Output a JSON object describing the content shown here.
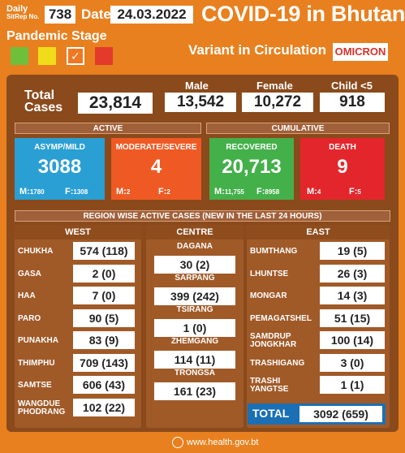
{
  "header": {
    "daily_l1": "Daily",
    "daily_l2": "SitRep No.",
    "sitrep_no": "738",
    "date_label": "Date",
    "date": "24.03.2022",
    "title": "COVID-19 in Bhutan",
    "pandemic_stage": "Pandemic Stage",
    "stage_check": "✓",
    "variant_label": "Variant in Circulation",
    "variant": "OMICRON",
    "colors": {
      "green": "#6fbf3b",
      "yellow": "#f0dc1a",
      "orange": "#f07822",
      "red": "#e23b2b"
    }
  },
  "totals": {
    "label_l1": "Total",
    "label_l2": "Cases",
    "total": "23,814",
    "male_label": "Male",
    "male": "13,542",
    "female_label": "Female",
    "female": "10,272",
    "child_label": "Child <5",
    "child": "918"
  },
  "active": {
    "header": "ACTIVE",
    "asymp": {
      "label": "ASYMP/MILD",
      "value": "3088",
      "m": "1780",
      "f": "1308"
    },
    "moderate": {
      "label": "MODERATE/SEVERE",
      "value": "4",
      "m": "2",
      "f": "2"
    }
  },
  "cumulative": {
    "header": "CUMULATIVE",
    "recovered": {
      "label": "RECOVERED",
      "value": "20,713",
      "m": "11,755",
      "f": "8958"
    },
    "death": {
      "label": "DEATH",
      "value": "9",
      "m": "4",
      "f": "5"
    }
  },
  "labels": {
    "m": "M:",
    "f": "F:"
  },
  "region": {
    "header": "REGION WISE ACTIVE CASES (NEW IN THE LAST 24 HOURS)",
    "west": {
      "name": "WEST",
      "items": [
        {
          "d1": "CHUKHA",
          "d2": "",
          "v": "574 (118)"
        },
        {
          "d1": "GASA",
          "d2": "",
          "v": "2 (0)"
        },
        {
          "d1": "HAA",
          "d2": "",
          "v": "7 (0)"
        },
        {
          "d1": "PARO",
          "d2": "",
          "v": "90 (5)"
        },
        {
          "d1": "PUNAKHA",
          "d2": "",
          "v": "83 (9)"
        },
        {
          "d1": "THIMPHU",
          "d2": "",
          "v": "709 (143)"
        },
        {
          "d1": "SAMTSE",
          "d2": "",
          "v": "606 (43)"
        },
        {
          "d1": "WANGDUE",
          "d2": "PHODRANG",
          "v": "102 (22)"
        }
      ]
    },
    "centre": {
      "name": "CENTRE",
      "items": [
        {
          "d": "DAGANA",
          "v": "30 (2)"
        },
        {
          "d": "SARPANG",
          "v": "399 (242)"
        },
        {
          "d": "TSIRANG",
          "v": "1 (0)"
        },
        {
          "d": "ZHEMGANG",
          "v": "114 (11)"
        },
        {
          "d": "TRONGSA",
          "v": "161 (23)"
        }
      ]
    },
    "east": {
      "name": "EAST",
      "items": [
        {
          "d1": "BUMTHANG",
          "d2": "",
          "v": "19 (5)"
        },
        {
          "d1": "LHUNTSE",
          "d2": "",
          "v": "26 (3)"
        },
        {
          "d1": "MONGAR",
          "d2": "",
          "v": "14 (3)"
        },
        {
          "d1": "PEMAGATSHEL",
          "d2": "",
          "v": "51 (15)"
        },
        {
          "d1": "SAMDRUP",
          "d2": "JONGKHAR",
          "v": "100 (14)"
        },
        {
          "d1": "TRASHIGANG",
          "d2": "",
          "v": "3 (0)"
        },
        {
          "d1": "TRASHI",
          "d2": "YANGTSE",
          "v": "1 (1)"
        }
      ]
    },
    "total_label": "TOTAL",
    "total": "3092 (659)"
  },
  "footer": {
    "url": "www.health.gov.bt"
  }
}
